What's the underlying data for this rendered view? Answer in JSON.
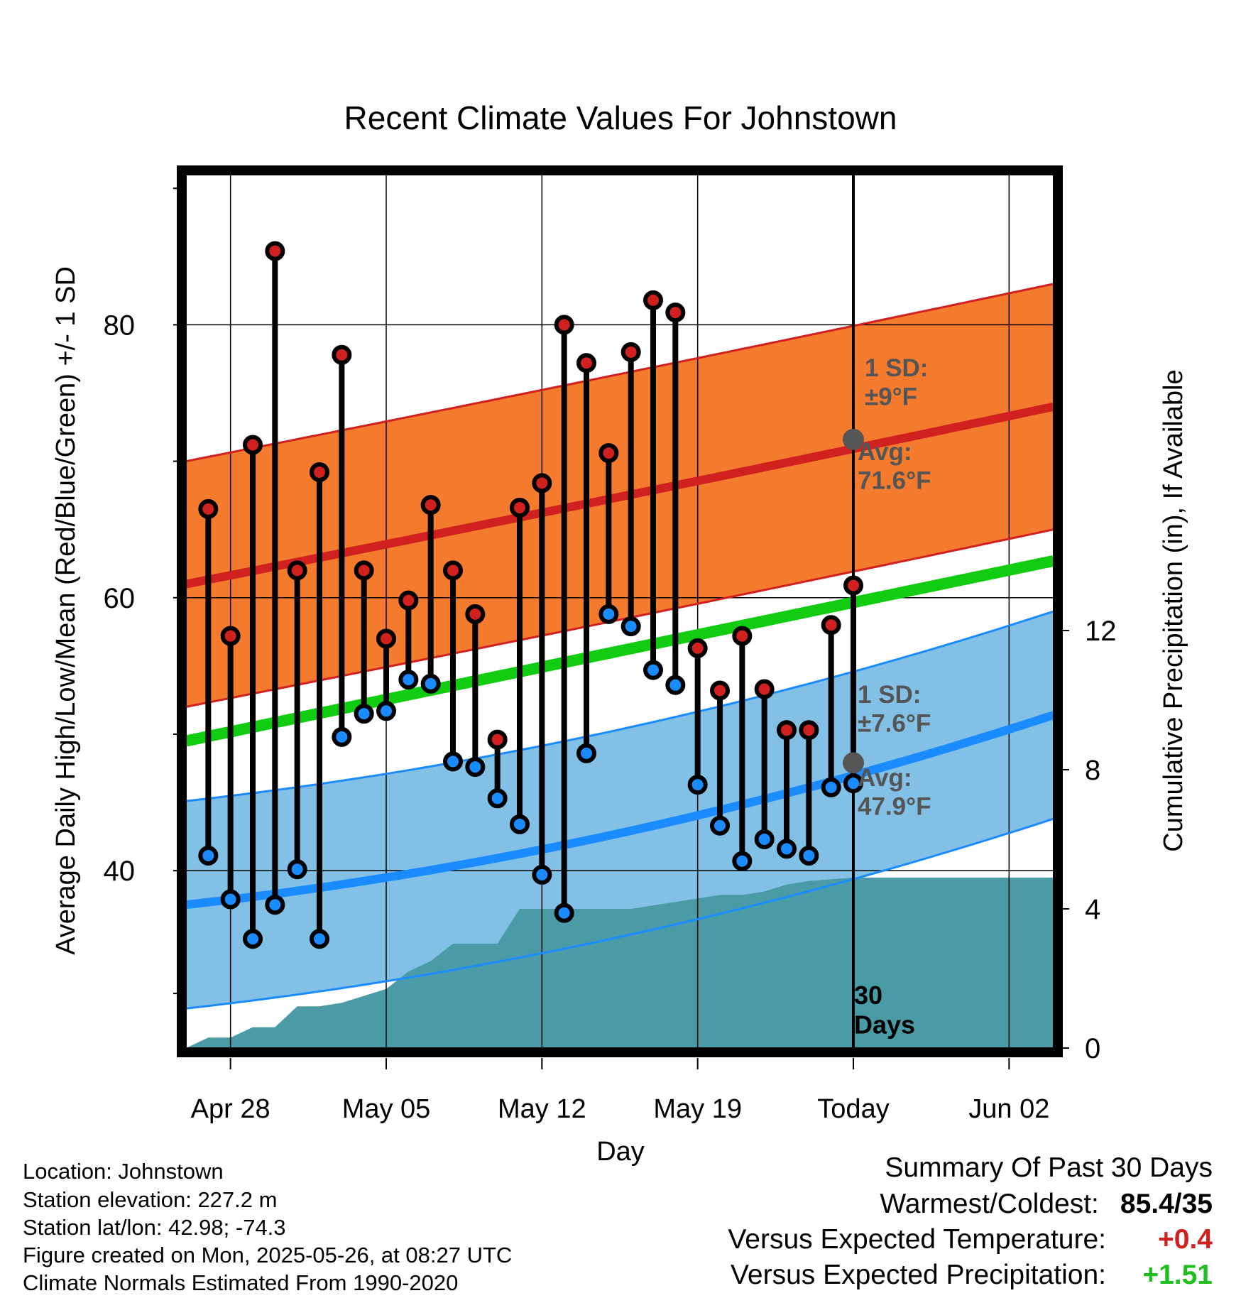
{
  "chart_data": {
    "type": "line",
    "title": "Recent Climate Values For Johnstown",
    "xlabel": "Day",
    "ylabel": "Average Daily High/Low/Mean (Red/Blue/Green) +/- 1 SD",
    "y2label": "Cumulative Precipitation (in), If Available",
    "x_ticks": [
      "Apr 28",
      "May 05",
      "May 12",
      "May 19",
      "Today",
      "Jun 02"
    ],
    "y_ticks": [
      "40",
      "60",
      "80"
    ],
    "y2_ticks": [
      "0",
      "4",
      "8",
      "12"
    ],
    "ylim": [
      27,
      91
    ],
    "y2lim": [
      0,
      25.1
    ],
    "today_marker": "30\nDays",
    "high_sd_label": "1 SD:\n±9°F",
    "high_avg_label": "Avg:\n71.6°F",
    "low_sd_label": "1 SD:\n±7.6°F",
    "low_avg_label": "Avg:\n47.9°F",
    "normals": {
      "start_day": "Apr 26",
      "end_day": "Jun 04",
      "high_avg": [
        61.0,
        74.0
      ],
      "high_avg_today": 71.6,
      "high_sd": 9,
      "mean": [
        49.5,
        62.7
      ],
      "low_avg": [
        37.5,
        51.4
      ],
      "low_avg_today": 47.9,
      "low_sd": 7.6
    },
    "days": [
      "Apr 26",
      "Apr 27",
      "Apr 28",
      "Apr 29",
      "Apr 30",
      "May 01",
      "May 02",
      "May 03",
      "May 04",
      "May 05",
      "May 06",
      "May 07",
      "May 08",
      "May 09",
      "May 10",
      "May 11",
      "May 12",
      "May 13",
      "May 14",
      "May 15",
      "May 16",
      "May 17",
      "May 18",
      "May 19",
      "May 20",
      "May 21",
      "May 22",
      "May 23",
      "May 24",
      "May 25"
    ],
    "series": [
      {
        "name": "High",
        "values": [
          66.5,
          57.2,
          71.2,
          85.4,
          62.0,
          69.2,
          77.8,
          62.0,
          57.0,
          59.8,
          66.8,
          62.0,
          58.8,
          49.6,
          66.6,
          68.4,
          80.0,
          77.2,
          70.6,
          78.0,
          81.8,
          80.9,
          56.3,
          53.2,
          57.2,
          53.3,
          50.3,
          50.3,
          58.0,
          60.9
        ]
      },
      {
        "name": "Low",
        "values": [
          41.1,
          37.9,
          35.0,
          37.5,
          40.1,
          35.0,
          49.8,
          51.5,
          51.7,
          54.0,
          53.7,
          48.0,
          47.6,
          45.3,
          43.4,
          39.7,
          36.9,
          48.6,
          58.8,
          57.9,
          54.7,
          53.6,
          46.3,
          43.3,
          40.7,
          42.3,
          41.6,
          41.1,
          46.1,
          46.4
        ]
      },
      {
        "name": "Cumulative Precipitation",
        "values": [
          0.3,
          0.3,
          0.6,
          0.6,
          1.2,
          1.2,
          1.3,
          1.5,
          1.7,
          2.2,
          2.5,
          3.0,
          3.0,
          3.0,
          4.0,
          4.0,
          4.0,
          4.0,
          4.0,
          4.0,
          4.1,
          4.2,
          4.3,
          4.4,
          4.4,
          4.5,
          4.7,
          4.8,
          4.85,
          4.9
        ]
      }
    ]
  },
  "info": {
    "location": "Location: Johnstown",
    "elevation": "Station elevation: 227.2 m",
    "latlon": "Station lat/lon: 42.98; -74.3",
    "created": "Figure created on Mon, 2025-05-26, at 08:27 UTC",
    "normals": "Climate Normals Estimated From 1990-2020"
  },
  "summary": {
    "heading": "Summary Of Past 30 Days",
    "warmest_coldest_label": "Warmest/Coldest:",
    "warmest_coldest_value": "85.4/35",
    "temp_label": "Versus Expected Temperature:",
    "temp_value": "+0.4",
    "precip_label": "Versus Expected Precipitation:",
    "precip_value": "+1.51"
  },
  "colors": {
    "high_band": "#f47a2e",
    "high_line": "#d12020",
    "mean_line": "#11cc11",
    "low_band": "#82c0e6",
    "low_line": "#1a8cff",
    "precip": "#4a9ba6",
    "label_gray": "#555555",
    "high_dot": "#d12020",
    "low_dot": "#1a8cff",
    "today_dot": "#555555"
  }
}
